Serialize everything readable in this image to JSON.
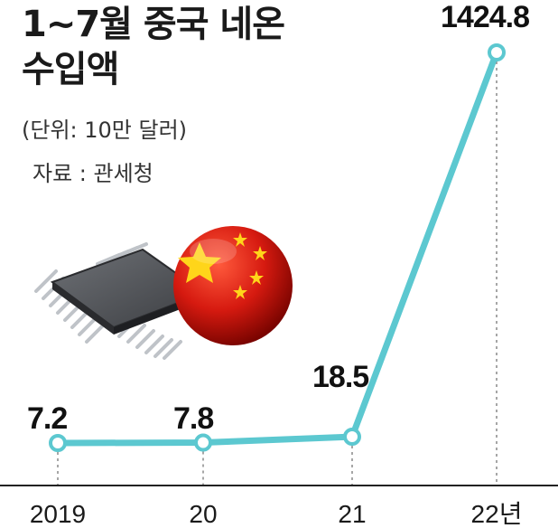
{
  "title_line1": "1~7월 중국 네온",
  "title_line2": "수입액",
  "unit": "(단위:  10만 달러)",
  "source": "자료 : 관세청",
  "colors": {
    "line": "#5cc8d0",
    "marker_fill": "#ffffff",
    "guide": "#888888",
    "axis": "#222222"
  },
  "icons": [
    "microchip-icon",
    "china-flag-ball-icon"
  ],
  "chart_data": {
    "type": "line",
    "categories": [
      "2019",
      "20",
      "21",
      "22년"
    ],
    "series": [
      {
        "values": [
          7.2,
          7.8,
          18.5,
          1424.8
        ]
      }
    ],
    "data_labels": [
      "7.2",
      "7.8",
      "18.5",
      "1424.8"
    ],
    "xlabel": "",
    "ylabel": "",
    "grid": false,
    "legend": "none"
  }
}
